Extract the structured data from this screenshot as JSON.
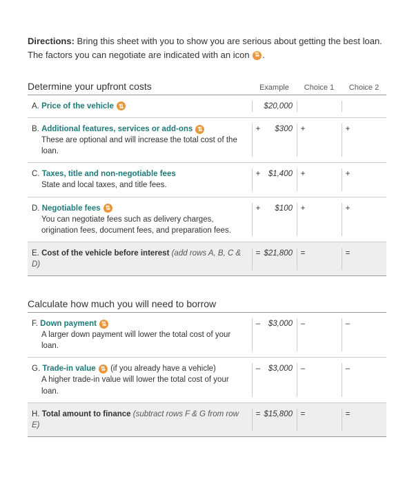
{
  "directions": {
    "label": "Directions:",
    "text1": " Bring this sheet with you to show you are serious about getting the best loan. The factors you can negotiate are indicated with an icon ",
    "text2": "."
  },
  "columns": {
    "example": "Example",
    "choice1": "Choice 1",
    "choice2": "Choice 2"
  },
  "icon_glyph": "⇅",
  "section1": {
    "title": "Determine your upfront costs",
    "rows": {
      "a": {
        "letter": "A.",
        "link": "Price of the vehicle",
        "has_icon": true,
        "op": "",
        "example": "$20,000"
      },
      "b": {
        "letter": "B.",
        "link": "Additional features, services or add-ons",
        "has_icon": true,
        "desc": "These are optional and will increase the total cost of the loan.",
        "op": "+",
        "example": "$300"
      },
      "c": {
        "letter": "C.",
        "link": "Taxes, title and non-negotiable fees",
        "has_icon": false,
        "desc": "State and local taxes, and title fees.",
        "op": "+",
        "example": "$1,400"
      },
      "d": {
        "letter": "D.",
        "link": "Negotiable fees",
        "has_icon": true,
        "desc": "You can negotiate fees such as delivery charges, origination fees, document fees, and preparation fees.",
        "op": "+",
        "example": "$100"
      },
      "e": {
        "letter": "E.",
        "bold": "Cost of the vehicle before interest",
        "note": " (add rows A, B, C & D)",
        "op": "=",
        "example": "$21,800"
      }
    }
  },
  "section2": {
    "title": "Calculate how much you will need to borrow",
    "rows": {
      "f": {
        "letter": "F.",
        "link": "Down payment",
        "has_icon": true,
        "desc": "A larger down payment will lower the total cost of your loan.",
        "op": "–",
        "example": "$3,000"
      },
      "g": {
        "letter": "G.",
        "link": "Trade-in value",
        "has_icon": true,
        "after": " (if you already have a vehicle)",
        "desc": "A higher trade-in value will lower the total cost of your loan.",
        "op": "–",
        "example": "$3,000"
      },
      "h": {
        "letter": "H.",
        "bold": "Total amount to finance",
        "note": " (subtract rows F & G from row E)",
        "op": "=",
        "example": "$15,800"
      }
    }
  },
  "colors": {
    "link": "#1f7a7a",
    "icon_bg": "#e8963a",
    "total_bg": "#eeeeee",
    "border": "#cccccc"
  }
}
